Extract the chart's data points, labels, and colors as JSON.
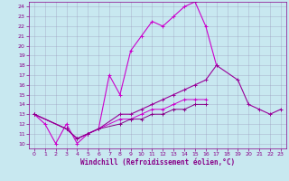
{
  "title": "",
  "xlabel": "Windchill (Refroidissement éolien,°C)",
  "background_color": "#c8e8f0",
  "xlim": [
    -0.5,
    23.5
  ],
  "ylim": [
    9.5,
    24.5
  ],
  "yticks": [
    10,
    11,
    12,
    13,
    14,
    15,
    16,
    17,
    18,
    19,
    20,
    21,
    22,
    23,
    24
  ],
  "xticks": [
    0,
    1,
    2,
    3,
    4,
    5,
    6,
    7,
    8,
    9,
    10,
    11,
    12,
    13,
    14,
    15,
    16,
    17,
    18,
    19,
    20,
    21,
    22,
    23
  ],
  "series1_x": [
    0,
    1,
    2,
    3,
    4,
    5,
    6,
    7,
    8,
    9,
    10,
    11,
    12,
    13,
    14,
    15,
    16,
    17
  ],
  "series1_y": [
    13,
    12,
    10,
    12,
    10,
    11,
    11.5,
    17,
    15,
    19.5,
    21,
    22.5,
    22,
    23,
    24,
    24.5,
    22,
    18
  ],
  "series2_x": [
    0,
    3,
    4,
    5,
    6,
    8,
    9,
    10,
    11,
    12,
    13,
    14,
    15,
    16,
    17,
    19,
    20,
    21,
    22,
    23
  ],
  "series2_y": [
    13,
    11.5,
    10.5,
    11,
    11.5,
    13,
    13,
    13.5,
    14,
    14.5,
    15,
    15.5,
    16,
    16.5,
    18,
    16.5,
    14,
    13.5,
    13,
    13.5
  ],
  "series3_x": [
    0,
    3,
    4,
    5,
    6,
    8,
    9,
    10,
    11,
    12,
    13,
    14,
    15,
    16
  ],
  "series3_y": [
    13,
    11.5,
    10.5,
    11,
    11.5,
    12.5,
    12.5,
    13,
    13.5,
    13.5,
    14,
    14.5,
    14.5,
    14.5
  ],
  "series4_x": [
    0,
    3,
    4,
    5,
    6,
    8,
    9,
    10,
    11,
    12,
    13,
    14,
    15,
    16
  ],
  "series4_y": [
    13,
    11.5,
    10.5,
    11,
    11.5,
    12,
    12.5,
    12.5,
    13,
    13,
    13.5,
    13.5,
    14,
    14
  ],
  "line_color1": "#cc00cc",
  "line_color2": "#990099",
  "line_color3": "#cc00cc",
  "line_color4": "#880088",
  "tick_color": "#880088",
  "spine_color": "#880088",
  "grid_color": "#9999bb",
  "xlabel_color": "#880088",
  "xlabel_fontsize": 5.5,
  "tick_fontsize": 4.5
}
